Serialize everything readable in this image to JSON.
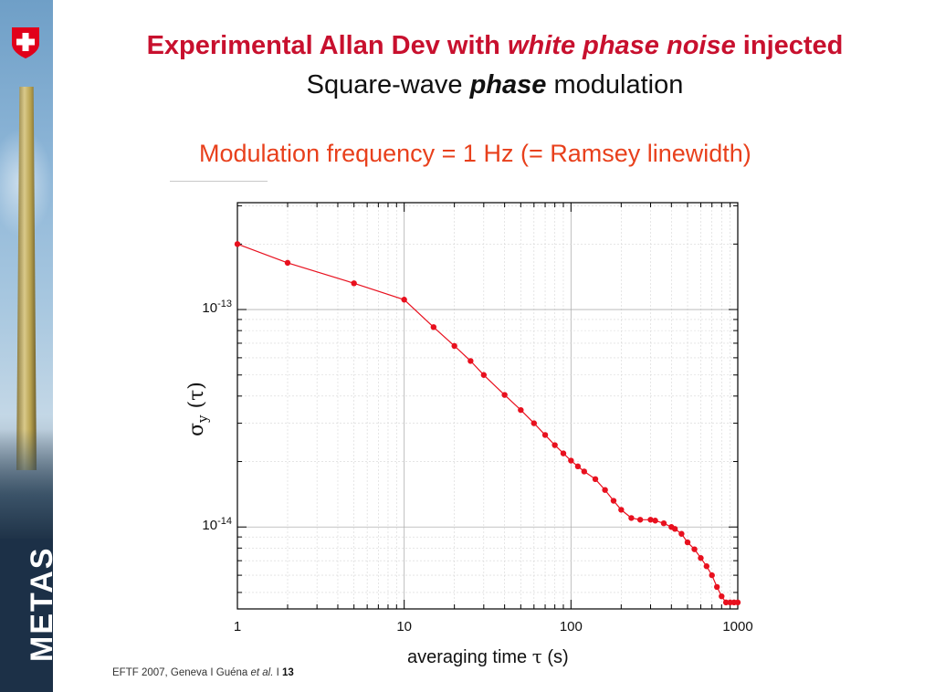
{
  "title": {
    "part1": "Experimental Allan Dev with ",
    "emphasis": "white phase noise",
    "part2": " injected"
  },
  "subtitle_line": {
    "part1": "Square-wave ",
    "emphasis": "phase",
    "part2": " modulation"
  },
  "annotation": "Modulation frequency = 1 Hz (= Ramsey linewidth)",
  "logo": {
    "text": "METAS",
    "icon": "swiss-cross-icon"
  },
  "footer": {
    "text": "EFTF 2007, Geneva I  Guéna ",
    "etal": "et al.",
    "sep": "  I  ",
    "page": "13"
  },
  "colors": {
    "title": "#c8102e",
    "annotation": "#e8401c",
    "series": "#e8101e"
  },
  "chart_data": {
    "type": "line",
    "x_scale": "log",
    "y_scale": "log",
    "xlim": [
      1,
      1000
    ],
    "ylim": [
      4.2e-15,
      3.1e-13
    ],
    "xlabel": {
      "text": "averaging time ",
      "symbol": "τ",
      "unit": " (s)"
    },
    "ylabel": {
      "symbol": "σ",
      "sub": "y",
      "arg": " (τ)"
    },
    "x_ticks": [
      {
        "value": 1,
        "label": "1"
      },
      {
        "value": 10,
        "label": "10"
      },
      {
        "value": 100,
        "label": "100"
      },
      {
        "value": 1000,
        "label": "1000"
      }
    ],
    "y_ticks": [
      {
        "value": 1e-13,
        "base": "10",
        "exp": "-13"
      },
      {
        "value": 1e-14,
        "base": "10",
        "exp": "-14"
      }
    ],
    "grid": true,
    "series": [
      {
        "x": [
          1,
          2,
          5,
          10,
          15,
          20,
          25,
          30,
          40,
          50,
          60,
          70,
          80,
          90,
          100,
          110,
          120,
          140,
          160,
          180,
          200,
          230,
          260,
          300,
          320,
          360,
          400,
          420,
          460,
          500,
          550,
          600,
          650,
          700,
          750,
          800,
          850,
          900,
          950,
          1000
        ],
        "y": [
          2e-13,
          1.64e-13,
          1.32e-13,
          1.11e-13,
          8.3e-14,
          6.8e-14,
          5.8e-14,
          5e-14,
          4.05e-14,
          3.45e-14,
          3e-14,
          2.65e-14,
          2.38e-14,
          2.18e-14,
          2.02e-14,
          1.9e-14,
          1.8e-14,
          1.66e-14,
          1.48e-14,
          1.32e-14,
          1.2e-14,
          1.1e-14,
          1.08e-14,
          1.08e-14,
          1.07e-14,
          1.04e-14,
          1e-14,
          9.8e-15,
          9.3e-15,
          8.5e-15,
          7.9e-15,
          7.2e-15,
          6.6e-15,
          6e-15,
          5.3e-15,
          4.8e-15,
          4.5e-15,
          4.5e-15,
          4.5e-15,
          4.5e-15
        ]
      }
    ]
  }
}
